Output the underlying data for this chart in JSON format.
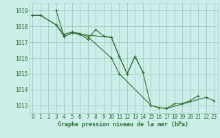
{
  "title": "Graphe pression niveau de la mer (hPa)",
  "bg_color": "#cceee8",
  "grid_color": "#aacccc",
  "line_color": "#2d6e2d",
  "ylim": [
    1012.5,
    1019.5
  ],
  "xlim": [
    -0.5,
    23.5
  ],
  "yticks": [
    1013,
    1014,
    1015,
    1016,
    1017,
    1018,
    1019
  ],
  "xticks": [
    0,
    1,
    2,
    3,
    4,
    5,
    6,
    7,
    8,
    9,
    10,
    11,
    12,
    13,
    14,
    15,
    16,
    17,
    18,
    19,
    20,
    21,
    22,
    23
  ],
  "series2": [
    {
      "x": [
        0,
        1,
        3,
        4,
        5,
        6,
        7,
        8,
        9,
        10,
        11,
        12,
        13,
        14,
        15,
        16,
        17,
        18,
        19,
        20,
        21
      ],
      "y": [
        1018.7,
        1018.7,
        1018.1,
        1017.35,
        1017.6,
        1017.5,
        1017.2,
        1017.8,
        1017.4,
        1017.3,
        1016.1,
        1015.0,
        1016.1,
        1015.1,
        1013.0,
        1012.85,
        1012.8,
        1013.1,
        1013.1,
        1013.3,
        1013.6
      ]
    },
    {
      "x": [
        0,
        1,
        3,
        4,
        5,
        6,
        7,
        10,
        11,
        15,
        16,
        17,
        22,
        23
      ],
      "y": [
        1018.7,
        1018.7,
        1018.1,
        1017.5,
        1017.65,
        1017.55,
        1017.35,
        1016.0,
        1015.0,
        1013.0,
        1012.85,
        1012.8,
        1013.5,
        1013.3
      ]
    },
    {
      "x": [
        3,
        4,
        5,
        6,
        10,
        11,
        12
      ],
      "y": [
        1019.0,
        1017.35,
        1017.6,
        1017.5,
        1017.3,
        1016.1,
        1015.0
      ]
    },
    {
      "x": [
        12,
        13,
        14
      ],
      "y": [
        1015.0,
        1016.1,
        1015.1
      ]
    }
  ],
  "tick_fontsize": 5.5,
  "label_fontsize": 6.0,
  "linewidth": 0.8,
  "markersize": 3.5,
  "markeredgewidth": 0.8
}
